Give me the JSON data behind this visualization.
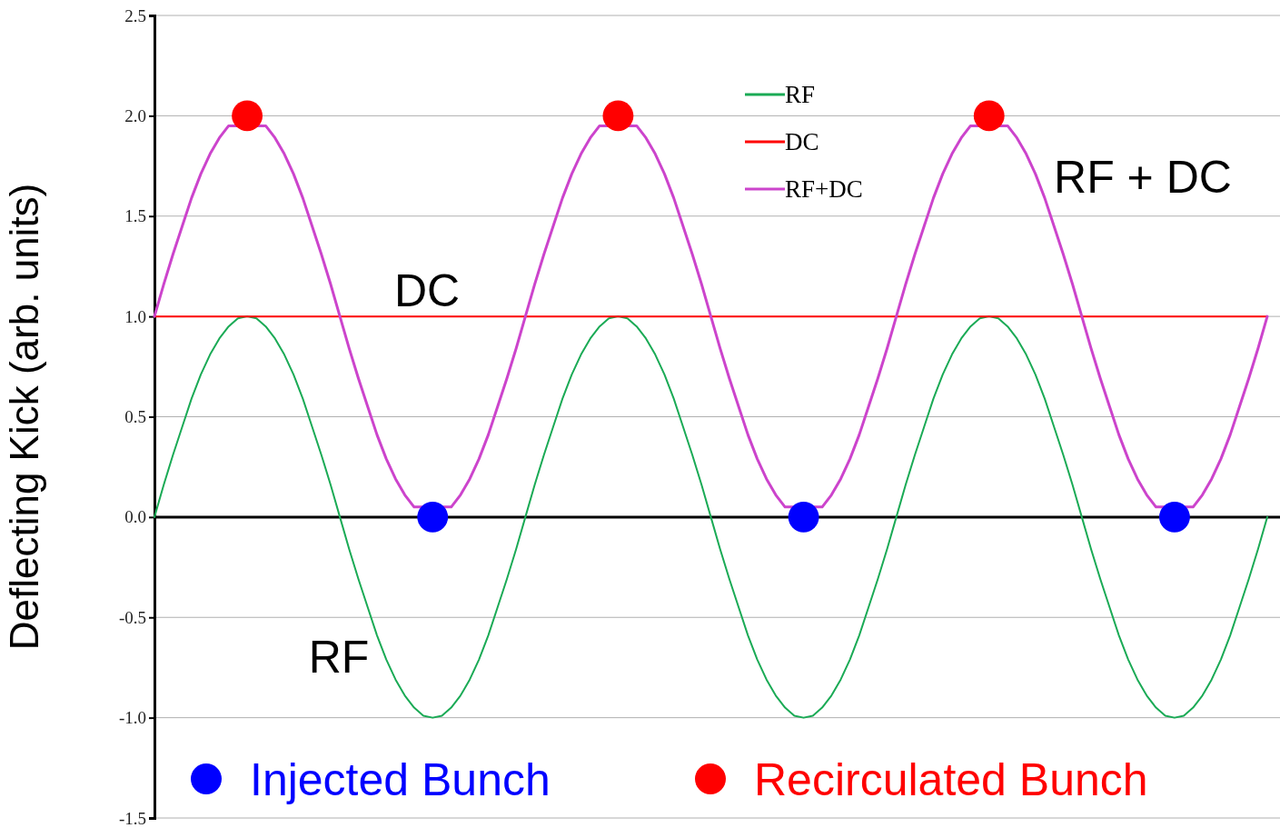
{
  "chart_data": {
    "type": "line",
    "ylabel": "Deflecting Kick (arb. units)",
    "categories": [
      null,
      null,
      null,
      null,
      null,
      null,
      null,
      null,
      null,
      null,
      null,
      null,
      null,
      null,
      null,
      null,
      null,
      null,
      null,
      null,
      null,
      null,
      null,
      null,
      null,
      null,
      null,
      null,
      null,
      null,
      null,
      null,
      null,
      null,
      null,
      null,
      null,
      null,
      null,
      null,
      null,
      null,
      null,
      null,
      null,
      null,
      null,
      null,
      null,
      null,
      null,
      null,
      null,
      null,
      null,
      null,
      null,
      null,
      null,
      null,
      null,
      null,
      null,
      null,
      null,
      null,
      null,
      null,
      null,
      null,
      null,
      null,
      null,
      null,
      null,
      null,
      null,
      null,
      null,
      null,
      null,
      null,
      null,
      null,
      null,
      null,
      null,
      null,
      null,
      null,
      null,
      null,
      null,
      null,
      null,
      null,
      null,
      null,
      null,
      null,
      null,
      null,
      null,
      null,
      null,
      null,
      null,
      null,
      null,
      null,
      null,
      null,
      null,
      null,
      null,
      null,
      null,
      null,
      null,
      null,
      null
    ],
    "ylim": [
      -1.5,
      2.5
    ],
    "yticks": [
      {
        "value": -1.5,
        "label": "-1.5"
      },
      {
        "value": -1,
        "label": "-1.0"
      },
      {
        "value": -0.5,
        "label": "-0.5"
      },
      {
        "value": 0,
        "label": "0.0"
      },
      {
        "value": 0.5,
        "label": "0.5"
      },
      {
        "value": 1,
        "label": "1.0"
      },
      {
        "value": 1.5,
        "label": "1.5"
      },
      {
        "value": 2,
        "label": "2.0"
      },
      {
        "value": 2.5,
        "label": "2.5"
      }
    ],
    "tick_labels": "y",
    "grid": "y",
    "legend": "bottom left",
    "line_style": "solid",
    "series": [
      {
        "name": "RF",
        "color": "#1aaa55",
        "values": [
          0,
          0.16,
          0.31,
          0.45,
          0.59,
          0.71,
          0.81,
          0.89,
          0.95,
          0.99,
          1,
          0.99,
          0.95,
          0.89,
          0.81,
          0.71,
          0.59,
          0.45,
          0.31,
          0.16,
          0,
          -0.16,
          -0.31,
          -0.45,
          -0.59,
          -0.71,
          -0.81,
          -0.89,
          -0.95,
          -0.99,
          -1,
          -0.99,
          -0.95,
          -0.89,
          -0.81,
          -0.71,
          -0.59,
          -0.45,
          -0.31,
          -0.16,
          0,
          0.16,
          0.31,
          0.45,
          0.59,
          0.71,
          0.81,
          0.89,
          0.95,
          0.99,
          1,
          0.99,
          0.95,
          0.89,
          0.81,
          0.71,
          0.59,
          0.45,
          0.31,
          0.16,
          0,
          -0.16,
          -0.31,
          -0.45,
          -0.59,
          -0.71,
          -0.81,
          -0.89,
          -0.95,
          -0.99,
          -1,
          -0.99,
          -0.95,
          -0.89,
          -0.81,
          -0.71,
          -0.59,
          -0.45,
          -0.31,
          -0.16,
          0,
          0.16,
          0.31,
          0.45,
          0.59,
          0.71,
          0.81,
          0.89,
          0.95,
          0.99,
          1,
          0.99,
          0.95,
          0.89,
          0.81,
          0.71,
          0.59,
          0.45,
          0.31,
          0.16,
          0,
          -0.16,
          -0.31,
          -0.45,
          -0.59,
          -0.71,
          -0.81,
          -0.89,
          -0.95,
          -0.99,
          -1,
          -0.99,
          -0.95,
          -0.89,
          -0.81,
          -0.71,
          -0.59,
          -0.45,
          -0.31,
          -0.16,
          0
        ]
      },
      {
        "name": "DC",
        "color": "#ff0000",
        "values": [
          1,
          1,
          1,
          1,
          1,
          1,
          1,
          1,
          1,
          1,
          1,
          1,
          1,
          1,
          1,
          1,
          1,
          1,
          1,
          1,
          1,
          1,
          1,
          1,
          1,
          1,
          1,
          1,
          1,
          1,
          1,
          1,
          1,
          1,
          1,
          1,
          1,
          1,
          1,
          1,
          1,
          1,
          1,
          1,
          1,
          1,
          1,
          1,
          1,
          1,
          1,
          1,
          1,
          1,
          1,
          1,
          1,
          1,
          1,
          1,
          1,
          1,
          1,
          1,
          1,
          1,
          1,
          1,
          1,
          1,
          1,
          1,
          1,
          1,
          1,
          1,
          1,
          1,
          1,
          1,
          1,
          1,
          1,
          1,
          1,
          1,
          1,
          1,
          1,
          1,
          1,
          1,
          1,
          1,
          1,
          1,
          1,
          1,
          1,
          1,
          1,
          1,
          1,
          1,
          1,
          1,
          1,
          1,
          1,
          1,
          1,
          1,
          1,
          1,
          1,
          1,
          1,
          1,
          1,
          1,
          1
        ]
      },
      {
        "name": "RF+DC",
        "color": "#cc44cc",
        "values": [
          1,
          1.16,
          1.31,
          1.45,
          1.59,
          1.71,
          1.81,
          1.89,
          1.95,
          null,
          null,
          null,
          1.95,
          1.89,
          1.81,
          1.71,
          1.59,
          1.45,
          1.31,
          1.16,
          1,
          0.84,
          0.69,
          0.55,
          0.41,
          0.29,
          0.19,
          0.11,
          0.05,
          null,
          null,
          null,
          0.05,
          0.11,
          0.19,
          0.29,
          0.41,
          0.55,
          0.69,
          0.84,
          1,
          1.16,
          1.31,
          1.45,
          1.59,
          1.71,
          1.81,
          1.89,
          1.95,
          null,
          null,
          null,
          1.95,
          1.89,
          1.81,
          1.71,
          1.59,
          1.45,
          1.31,
          1.16,
          1,
          0.84,
          0.69,
          0.55,
          0.41,
          0.29,
          0.19,
          0.11,
          0.05,
          null,
          null,
          null,
          0.05,
          0.11,
          0.19,
          0.29,
          0.41,
          0.55,
          0.69,
          0.84,
          1,
          1.16,
          1.31,
          1.45,
          1.59,
          1.71,
          1.81,
          1.89,
          1.95,
          null,
          null,
          null,
          1.95,
          1.89,
          1.81,
          1.71,
          1.59,
          1.45,
          1.31,
          1.16,
          1,
          0.84,
          0.69,
          0.55,
          0.41,
          0.29,
          0.19,
          0.11,
          0.05,
          null,
          null,
          null,
          0.05,
          0.11,
          0.19,
          0.29,
          0.41,
          0.55,
          0.69,
          0.84,
          1
        ]
      },
      {
        "name": "Injected Bunch",
        "type": "scatter",
        "marker": "circle",
        "color": "#0000ff",
        "values": [
          null,
          null,
          null,
          null,
          null,
          null,
          null,
          null,
          null,
          null,
          null,
          null,
          null,
          null,
          null,
          null,
          null,
          null,
          null,
          null,
          null,
          null,
          null,
          null,
          null,
          null,
          null,
          null,
          null,
          null,
          0,
          null,
          null,
          null,
          null,
          null,
          null,
          null,
          null,
          null,
          null,
          null,
          null,
          null,
          null,
          null,
          null,
          null,
          null,
          null,
          null,
          null,
          null,
          null,
          null,
          null,
          null,
          null,
          null,
          null,
          null,
          null,
          null,
          null,
          null,
          null,
          null,
          null,
          null,
          null,
          0,
          null,
          null,
          null,
          null,
          null,
          null,
          null,
          null,
          null,
          null,
          null,
          null,
          null,
          null,
          null,
          null,
          null,
          null,
          null,
          null,
          null,
          null,
          null,
          null,
          null,
          null,
          null,
          null,
          null,
          null,
          null,
          null,
          null,
          null,
          null,
          null,
          null,
          null,
          null,
          0,
          null,
          null,
          null,
          null,
          null,
          null,
          null,
          null,
          null,
          null
        ]
      },
      {
        "name": "Recirculated Bunch",
        "type": "scatter",
        "marker": "circle",
        "color": "#ff0000",
        "values": [
          null,
          null,
          null,
          null,
          null,
          null,
          null,
          null,
          null,
          null,
          2,
          null,
          null,
          null,
          null,
          null,
          null,
          null,
          null,
          null,
          null,
          null,
          null,
          null,
          null,
          null,
          null,
          null,
          null,
          null,
          null,
          null,
          null,
          null,
          null,
          null,
          null,
          null,
          null,
          null,
          null,
          null,
          null,
          null,
          null,
          null,
          null,
          null,
          null,
          null,
          2,
          null,
          null,
          null,
          null,
          null,
          null,
          null,
          null,
          null,
          null,
          null,
          null,
          null,
          null,
          null,
          null,
          null,
          null,
          null,
          null,
          null,
          null,
          null,
          null,
          null,
          null,
          null,
          null,
          null,
          null,
          null,
          null,
          null,
          null,
          null,
          null,
          null,
          null,
          null,
          2,
          null,
          null,
          null,
          null,
          null,
          null,
          null,
          null,
          null,
          null,
          null,
          null,
          null,
          null,
          null,
          null,
          null,
          null,
          null,
          null,
          null,
          null,
          null,
          null,
          null,
          null,
          null,
          null,
          null,
          null
        ]
      }
    ],
    "annotations": [
      "DC",
      "RF",
      "RF + DC"
    ]
  }
}
